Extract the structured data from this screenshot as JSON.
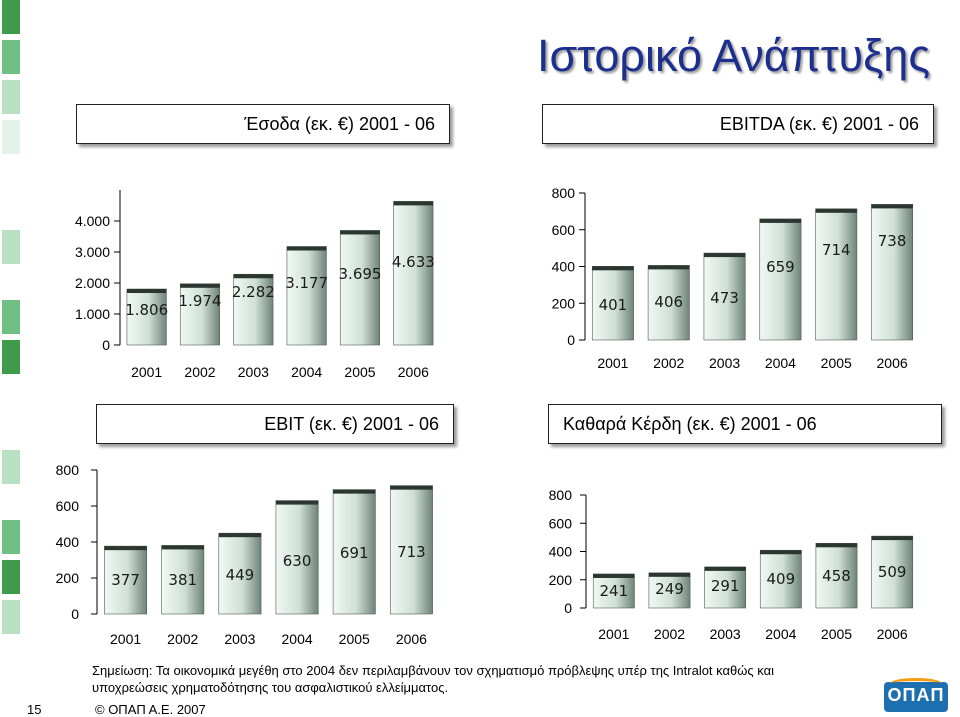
{
  "page": {
    "title": "Ιστορικό Ανάπτυξης",
    "note": "Σημείωση: Τα οικονομικά μεγέθη στο 2004 δεν περιλαμβάνουν τον σχηματισμό πρόβλεψης υπέρ της Intralot καθώς και υποχρεώσεις χρηματοδότησης του ασφαλιστικού ελλείμματος.",
    "page_number": "15",
    "copyright": "© ΟΠΑΠ Α.Ε. 2007",
    "logo_text": "ΟΠΑΠ",
    "colors": {
      "title": "#1d2f8e",
      "bar_light": "#eaf3ef",
      "bar_dark": "#7b8f84",
      "sidebar_green": [
        "#3f9a4a",
        "#6fc082",
        "#b8e0c3"
      ]
    }
  },
  "chart_data": [
    {
      "type": "bar",
      "title": "Έσοδα (εκ. €) 2001 - 06",
      "categories": [
        "2001",
        "2002",
        "2003",
        "2004",
        "2005",
        "2006"
      ],
      "values": [
        1806,
        1974,
        2282,
        3177,
        3695,
        4633
      ],
      "value_labels": [
        "1.806",
        "1.974",
        "2.282",
        "3.177",
        "3.695",
        "4.633"
      ],
      "ylim": [
        0,
        5000
      ],
      "y_ticks": [
        0,
        1000,
        2000,
        3000,
        4000
      ],
      "y_tick_labels": [
        "0",
        "1.000",
        "2.000",
        "3.000",
        "4.000"
      ],
      "grid": false
    },
    {
      "type": "bar",
      "title": "EBITDA (εκ. €) 2001 - 06",
      "categories": [
        "2001",
        "2002",
        "2003",
        "2004",
        "2005",
        "2006"
      ],
      "values": [
        401,
        406,
        473,
        659,
        714,
        738
      ],
      "value_labels": [
        "401",
        "406",
        "473",
        "659",
        "714",
        "738"
      ],
      "ylim": [
        0,
        800
      ],
      "y_ticks": [
        0,
        200,
        400,
        600,
        800
      ],
      "y_tick_labels": [
        "0",
        "200",
        "400",
        "600",
        "800"
      ],
      "grid": false
    },
    {
      "type": "bar",
      "title": "EBIT (εκ. €) 2001 - 06",
      "categories": [
        "2001",
        "2002",
        "2003",
        "2004",
        "2005",
        "2006"
      ],
      "values": [
        377,
        381,
        449,
        630,
        691,
        713
      ],
      "value_labels": [
        "377",
        "381",
        "449",
        "630",
        "691",
        "713"
      ],
      "ylim": [
        0,
        800
      ],
      "y_ticks": [
        0,
        200,
        400,
        600,
        800
      ],
      "y_tick_labels": [
        "0",
        "200",
        "400",
        "600",
        "800"
      ],
      "grid": false
    },
    {
      "type": "bar",
      "title": "Καθαρά Κέρδη (εκ. €) 2001 - 06",
      "categories": [
        "2001",
        "2002",
        "2003",
        "2004",
        "2005",
        "2006"
      ],
      "values": [
        241,
        249,
        291,
        409,
        458,
        509
      ],
      "value_labels": [
        "241",
        "249",
        "291",
        "409",
        "458",
        "509"
      ],
      "ylim": [
        0,
        800
      ],
      "y_ticks": [
        0,
        200,
        400,
        600,
        800
      ],
      "y_tick_labels": [
        "0",
        "200",
        "400",
        "600",
        "800"
      ],
      "grid": false
    }
  ]
}
